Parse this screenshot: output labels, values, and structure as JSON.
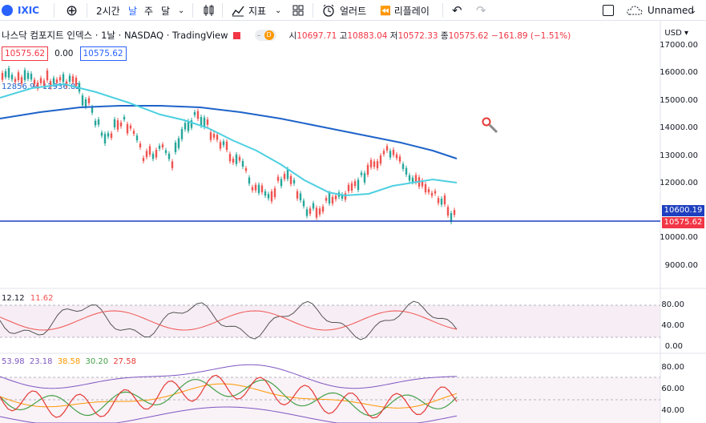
{
  "toolbar": {
    "symbol": "IXIC",
    "interval": "2시간",
    "interval_day": "날",
    "interval_week": "주",
    "interval_month": "달",
    "indicators": "지표",
    "alert": "얼러트",
    "replay": "리플레이",
    "layout_name": "Unnamed"
  },
  "legend": {
    "title": "나스닥 컴포지트 인덱스 · 1날 · NASDAQ · TradingView",
    "open_label": "시",
    "open": "10697.71",
    "high_label": "고",
    "high": "10883.04",
    "low_label": "저",
    "low": "10572.33",
    "close_label": "종",
    "close": "10575.62",
    "change": "−161.89 (−1.51%)",
    "price_left": "10575.62",
    "price_mid": "0.00",
    "price_right": "10575.62",
    "ma_values": "12856.94  12936.82",
    "d_badge": "D"
  },
  "axis": {
    "currency": "USD",
    "ticks": [
      "17000.00",
      "16000.00",
      "15000.00",
      "14000.00",
      "13000.00",
      "12000.00",
      "10000.00",
      "9000.00"
    ],
    "tag_blue": "10600.19",
    "tag_red": "10575.62",
    "rsi_ticks": [
      "80.00",
      "40.00",
      "0.00"
    ],
    "osc_ticks": [
      "80.00",
      "60.00",
      "40.00"
    ]
  },
  "indicators": {
    "pane1_a": "12.12",
    "pane1_b": "11.62",
    "pane2_a": "53.98",
    "pane2_b": "23.18",
    "pane2_c": "38.58",
    "pane2_d": "30.20",
    "pane2_e": "27.58"
  },
  "colors": {
    "accent": "#2962ff",
    "up": "#26a69a",
    "down": "#ef5350",
    "ma_short": "#4dd0e1",
    "ma_long": "#1e63c9"
  }
}
